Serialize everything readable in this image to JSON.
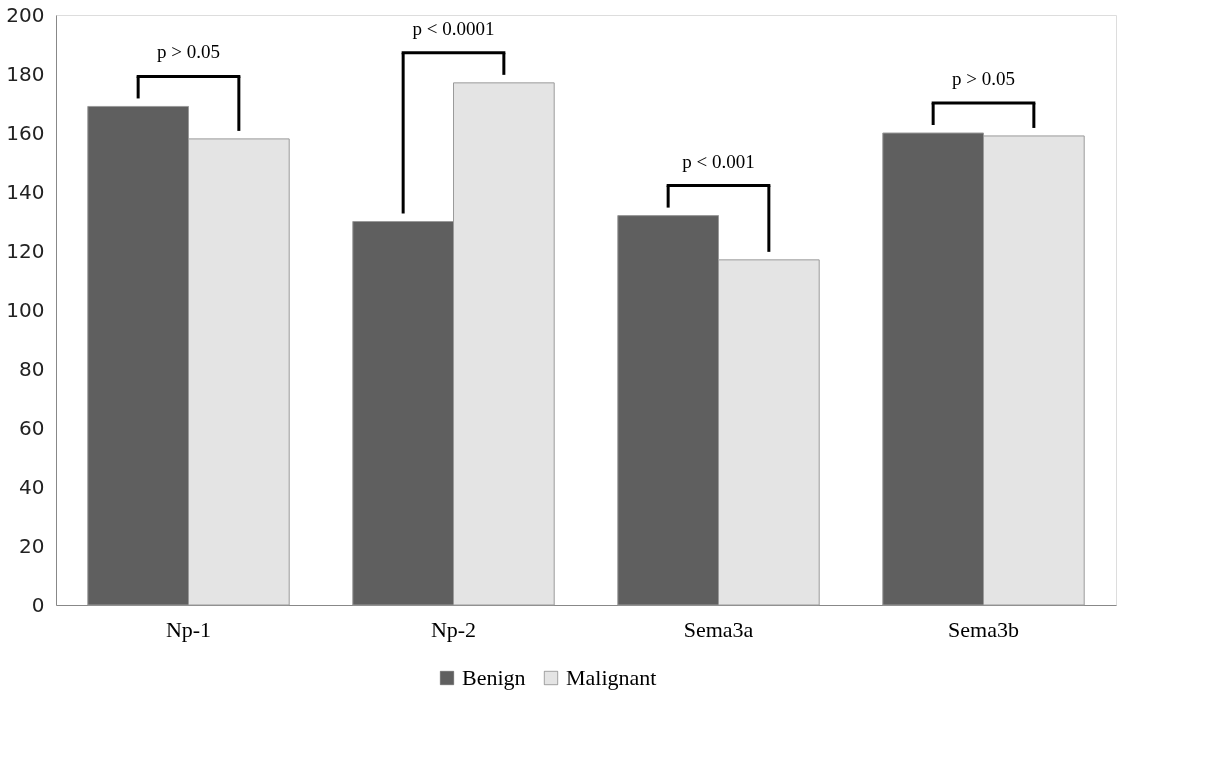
{
  "chart_data": {
    "type": "bar",
    "categories": [
      "Np-1",
      "Np-2",
      "Sema3a",
      "Sema3b"
    ],
    "series": [
      {
        "name": "Benign",
        "color": "#5f5f5f",
        "values": [
          169,
          130,
          132,
          160
        ]
      },
      {
        "name": "Malignant",
        "color": "#e4e4e4",
        "values": [
          158,
          177,
          117,
          159
        ]
      }
    ],
    "ylim": [
      0,
      200
    ],
    "yticks": [
      0,
      20,
      40,
      60,
      80,
      100,
      120,
      140,
      160,
      180,
      200
    ],
    "grid": false,
    "legend": "bottom",
    "annotations": [
      "p > 0.05",
      "p < 0.0001",
      "p < 0.001",
      "p > 0.05"
    ]
  }
}
